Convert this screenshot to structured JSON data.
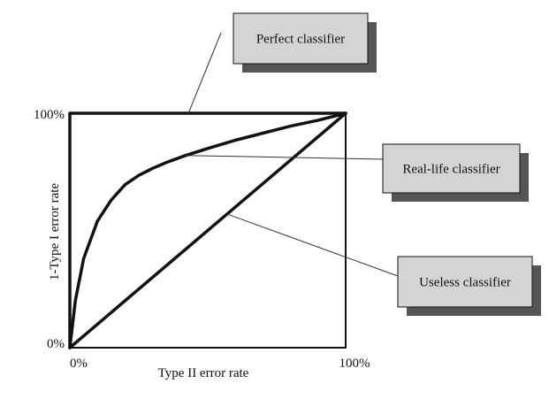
{
  "chart_data": {
    "type": "line",
    "title": "",
    "xlabel": "Type II error rate",
    "ylabel": "1-Type I error rate",
    "xlim": [
      0,
      100
    ],
    "ylim": [
      0,
      100
    ],
    "x_ticks": [
      "0%",
      "100%"
    ],
    "y_ticks": [
      "0%",
      "100%"
    ],
    "grid": false,
    "series": [
      {
        "name": "Perfect classifier",
        "x": [
          0,
          0,
          100
        ],
        "y": [
          0,
          100,
          100
        ]
      },
      {
        "name": "Real-life classifier",
        "x": [
          0,
          2,
          5,
          10,
          15,
          20,
          25,
          30,
          35,
          42,
          50,
          60,
          70,
          80,
          90,
          100
        ],
        "y": [
          0,
          20,
          38,
          54,
          63,
          69.5,
          73.5,
          76.5,
          79,
          82,
          85,
          88.5,
          91.5,
          94.5,
          97,
          100
        ]
      },
      {
        "name": "Useless classifier",
        "x": [
          0,
          100
        ],
        "y": [
          0,
          100
        ]
      }
    ],
    "annotations": [
      {
        "text": "Perfect classifier",
        "points_to": [
          43,
          100
        ]
      },
      {
        "text": "Real-life classifier",
        "points_to": [
          42,
          82
        ]
      },
      {
        "text": "Useless classifier",
        "points_to": [
          57,
          57
        ]
      }
    ]
  }
}
